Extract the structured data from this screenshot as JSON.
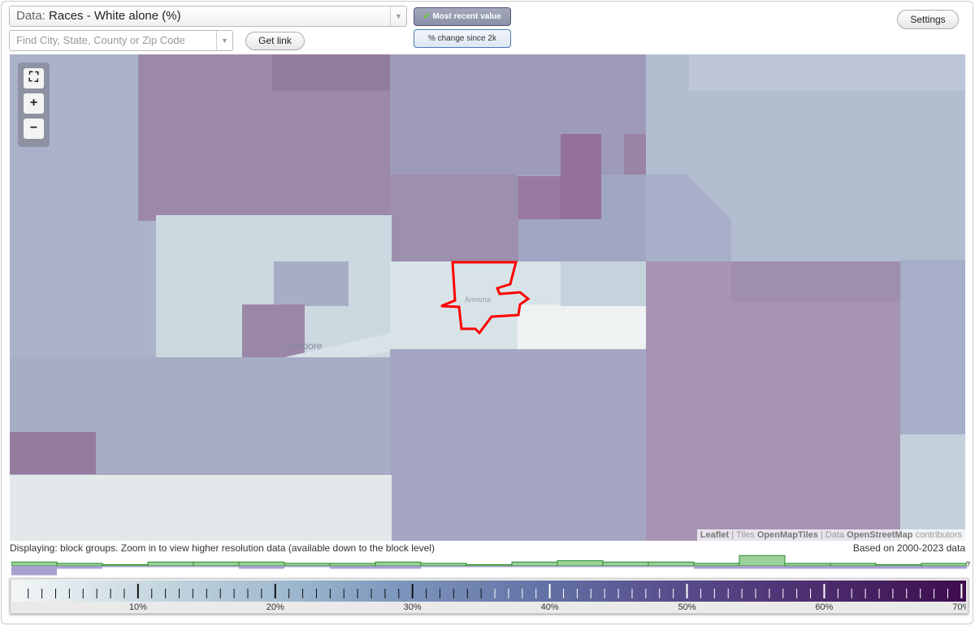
{
  "header": {
    "data_prefix": "Data:",
    "data_value": "Races - White alone (%)",
    "search_placeholder": "Find City, State, County or Zip Code",
    "get_link": "Get link",
    "toggle_recent": "Most recent value",
    "toggle_change": "% change since 2k",
    "settings": "Settings"
  },
  "map": {
    "place_labels": [
      "Lemoore",
      "Armona"
    ],
    "highlight_color": "#ff0000",
    "attribution": {
      "leaflet": "Leaflet",
      "tiles_prefix": "Tiles",
      "tiles": "OpenMapTiles",
      "data_prefix": "Data",
      "data": "OpenStreetMap",
      "suffix": "contributors"
    }
  },
  "footer": {
    "displaying": "Displaying: block groups. Zoom in to view higher resolution data (available down to the block level)",
    "based_on": "Based on 2000-2023 data",
    "question": "?"
  },
  "legend": {
    "min": 1,
    "max": 70.5,
    "labels": [
      "10%",
      "20%",
      "30%",
      "40%",
      "50%",
      "60%",
      "70%"
    ],
    "label_values": [
      10,
      20,
      30,
      40,
      50,
      60,
      70
    ],
    "histogram_green": [
      3,
      2,
      1,
      3,
      3,
      3,
      2,
      2,
      3,
      2,
      1,
      3,
      4,
      3,
      3,
      2,
      8,
      2,
      2,
      1,
      2
    ],
    "histogram_purple": [
      5,
      1,
      0,
      0,
      0,
      1,
      0,
      1,
      1,
      0,
      0,
      0,
      0,
      0,
      0,
      1,
      1,
      1,
      1,
      1,
      1
    ]
  }
}
